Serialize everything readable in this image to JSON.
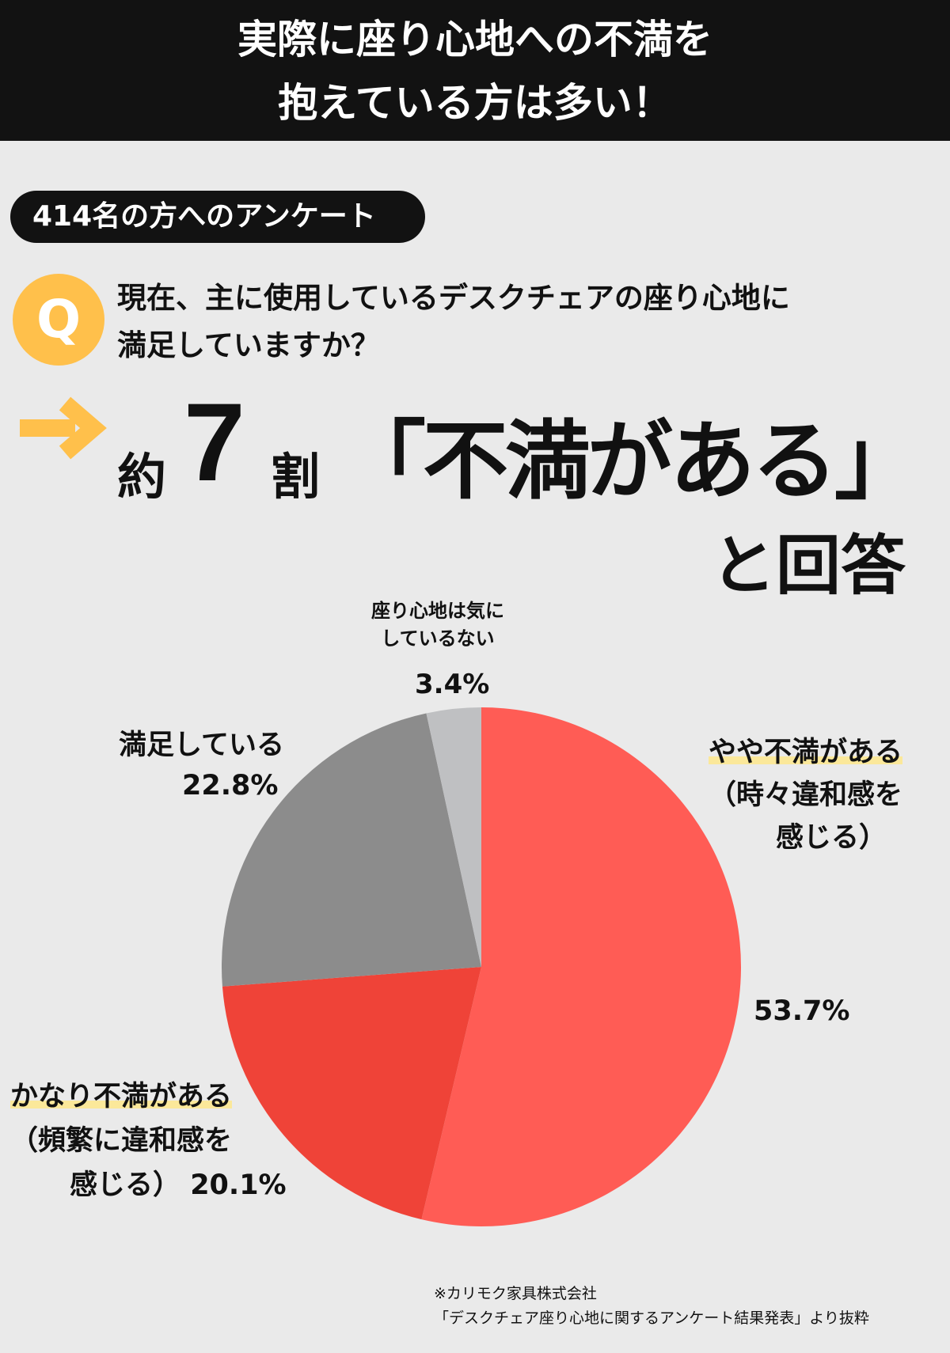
{
  "header": {
    "line1": "実際に座り心地への不満を",
    "line2": "抱えている方は多い！"
  },
  "survey_pill": "414名の方へのアンケート",
  "question": {
    "icon": "Q",
    "line1": "現在、主に使用しているデスクチェアの座り心地に",
    "line2": "満足していますか？"
  },
  "answer": {
    "prefix": "約",
    "number": "7",
    "unit": "割",
    "quote": "「不満がある」",
    "suffix": "と回答"
  },
  "colors": {
    "accent": "#ffc04b",
    "header_bg": "#121212",
    "highlight": "#fbe89a"
  },
  "chart_data": {
    "type": "pie",
    "start": "top, clockwise",
    "slices": [
      {
        "label_lines": [
          "やや不満がある",
          "（時々違和感を",
          "感じる）"
        ],
        "value": 53.7,
        "value_label": "53.7%",
        "color": "#ff5c55"
      },
      {
        "label_lines": [
          "かなり不満がある",
          "（頻繁に違和感を",
          "感じる）"
        ],
        "value": 20.1,
        "value_label": "20.1%",
        "color": "#ef4338"
      },
      {
        "label_lines": [
          "満足している"
        ],
        "value": 22.8,
        "value_label": "22.8%",
        "color": "#8c8c8c"
      },
      {
        "label_lines": [
          "座り心地は気に",
          "しているない"
        ],
        "value": 3.4,
        "value_label": "3.4%",
        "color": "#bfc0c2"
      }
    ]
  },
  "footer": {
    "line1": "※カリモク家具株式会社",
    "line2": "「デスクチェア座り心地に関するアンケート結果発表」より抜粋"
  }
}
